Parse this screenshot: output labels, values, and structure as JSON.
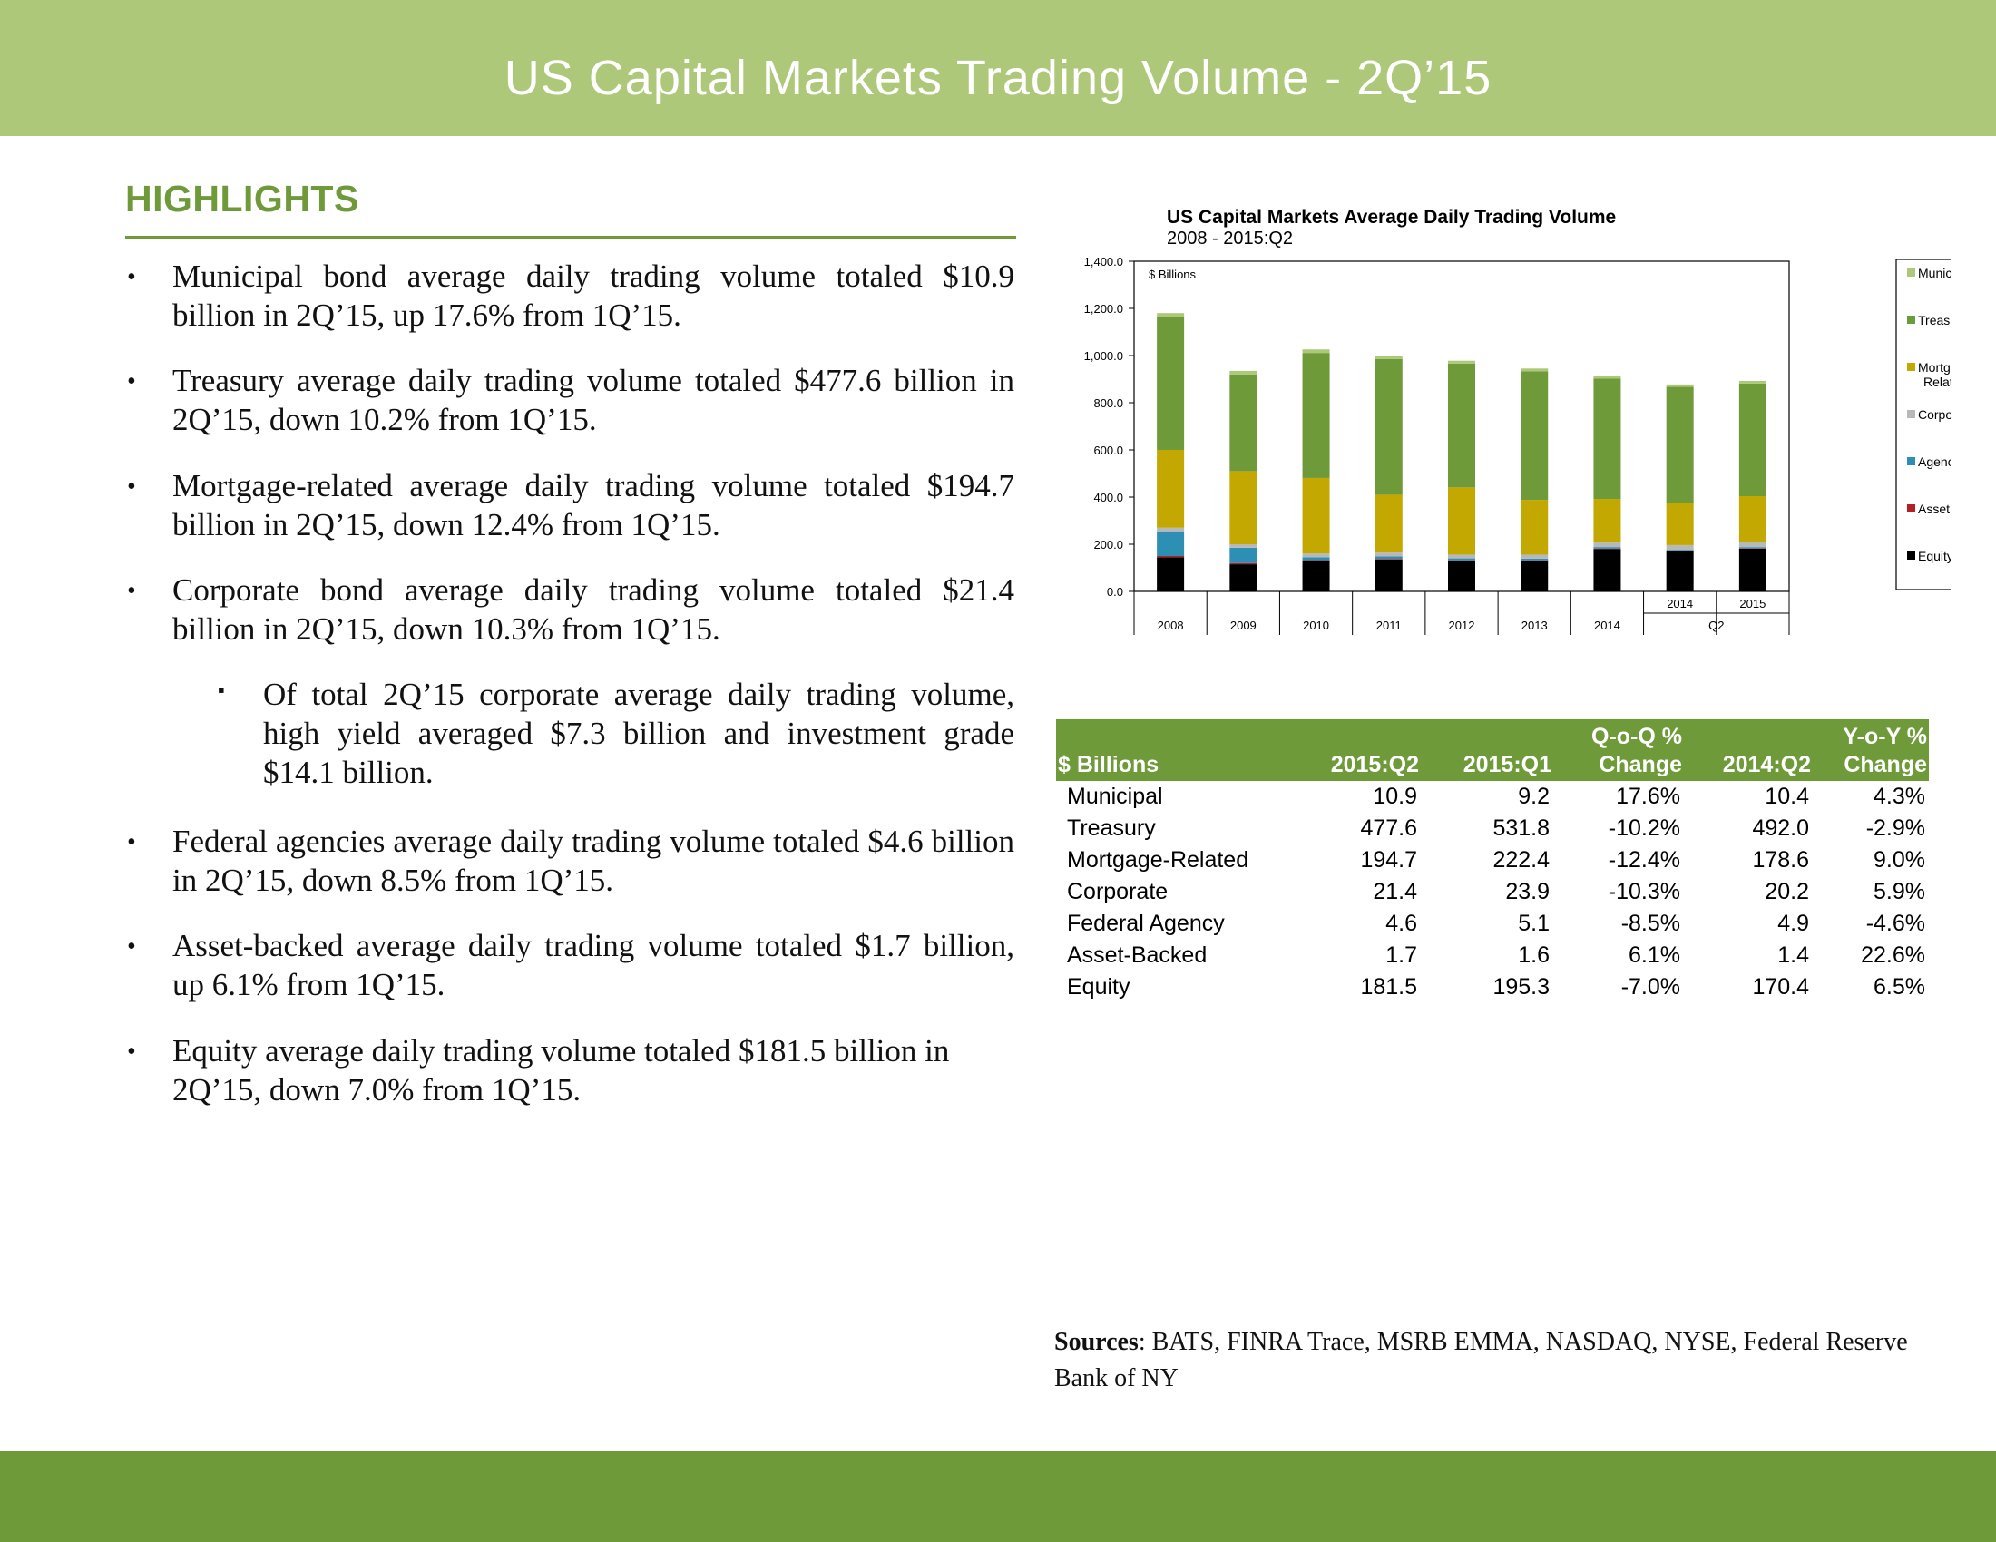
{
  "page": {
    "title": "US Capital Markets Trading Volume - 2Q’15",
    "colors": {
      "banner_light": "#adc879",
      "banner_dark": "#6f9a3a",
      "heading_green": "#6f9a3a"
    }
  },
  "highlights": {
    "heading": "HIGHLIGHTS",
    "bullets": [
      "Municipal bond average daily trading volume totaled $10.9 billion in 2Q’15, up 17.6% from 1Q’15.",
      "Treasury average daily trading volume totaled $477.6 billion in 2Q’15, down 10.2% from 1Q’15.",
      "Mortgage-related average daily trading volume totaled $194.7 billion in 2Q’15, down 12.4% from 1Q’15.",
      "Corporate bond average daily trading volume totaled $21.4 billion in 2Q’15, down 10.3% from 1Q’15.",
      "Of total 2Q’15 corporate average daily trading volume, high yield averaged $7.3 billion and investment grade $14.1 billion.",
      "Federal agencies average daily trading volume totaled $4.6 billion in 2Q’15, down 8.5% from 1Q’15.",
      "Asset-backed average daily trading volume totaled $1.7 billion, up 6.1% from 1Q’15.",
      "Equity average daily trading volume totaled $181.5 billion in 2Q’15, down 7.0% from 1Q’15."
    ]
  },
  "chart_data": {
    "type": "bar",
    "stacked": true,
    "title": "US Capital Markets Average Daily Trading Volume",
    "subtitle": "2008 - 2015:Q2",
    "ylabel": "$ Billions",
    "ylim": [
      0,
      1400
    ],
    "yticks": [
      "0.0",
      "200.0",
      "400.0",
      "600.0",
      "800.0",
      "1,000.0",
      "1,200.0",
      "1,400.0"
    ],
    "categories": [
      "2008",
      "2009",
      "2010",
      "2011",
      "2012",
      "2013",
      "2014",
      "2014",
      "2015"
    ],
    "group_label": "Q2",
    "grid": false,
    "legend_position": "right",
    "series": [
      {
        "name": "Equity",
        "color": "#000000",
        "values": [
          145,
          115,
          130,
          135,
          130,
          130,
          180,
          170,
          181.5
        ]
      },
      {
        "name": "Asset Backed",
        "color": "#b31f24",
        "values": [
          5,
          5,
          3,
          3,
          2,
          2,
          2,
          1.4,
          1.7
        ]
      },
      {
        "name": "Agency",
        "color": "#2e8fb5",
        "values": [
          105,
          65,
          12,
          10,
          8,
          7,
          6,
          4.9,
          4.6
        ]
      },
      {
        "name": "Corporate",
        "color": "#b8b8b8",
        "values": [
          15,
          15,
          16,
          17,
          16,
          17,
          19,
          20.2,
          21.4
        ]
      },
      {
        "name": "Mortgage-Related",
        "color": "#c2a800",
        "values": [
          330,
          310,
          320,
          245,
          285,
          232,
          185,
          178.6,
          194.7
        ]
      },
      {
        "name": "Treasury",
        "color": "#6f9a3a",
        "values": [
          565,
          410,
          530,
          575,
          525,
          545,
          510,
          492,
          477.6
        ]
      },
      {
        "name": "Municipal",
        "color": "#adc879",
        "values": [
          15,
          15,
          15,
          13,
          12,
          12,
          12,
          10.4,
          10.9
        ]
      }
    ],
    "legend_labels": [
      "Municipal",
      "Treasury",
      "Mortgage- Related",
      "Corporate",
      "Agency",
      "Asset Backed",
      "Equity"
    ]
  },
  "table": {
    "header_top": [
      "",
      "",
      "",
      "Q-o-Q %",
      "",
      "Y-o-Y %"
    ],
    "header_bottom": [
      "$ Billions",
      "2015:Q2",
      "2015:Q1",
      "Change",
      "2014:Q2",
      "Change"
    ],
    "rows": [
      [
        "Municipal",
        "10.9",
        "9.2",
        "17.6%",
        "10.4",
        "4.3%"
      ],
      [
        "Treasury",
        "477.6",
        "531.8",
        "-10.2%",
        "492.0",
        "-2.9%"
      ],
      [
        "Mortgage-Related",
        "194.7",
        "222.4",
        "-12.4%",
        "178.6",
        "9.0%"
      ],
      [
        "Corporate",
        "21.4",
        "23.9",
        "-10.3%",
        "20.2",
        "5.9%"
      ],
      [
        "Federal Agency",
        "4.6",
        "5.1",
        "-8.5%",
        "4.9",
        "-4.6%"
      ],
      [
        "Asset-Backed",
        "1.7",
        "1.6",
        "6.1%",
        "1.4",
        "22.6%"
      ],
      [
        "Equity",
        "181.5",
        "195.3",
        "-7.0%",
        "170.4",
        "6.5%"
      ]
    ]
  },
  "sources": {
    "label": "Sources",
    "text": ": BATS, FINRA Trace, MSRB EMMA, NASDAQ, NYSE, Federal Reserve Bank of NY"
  }
}
